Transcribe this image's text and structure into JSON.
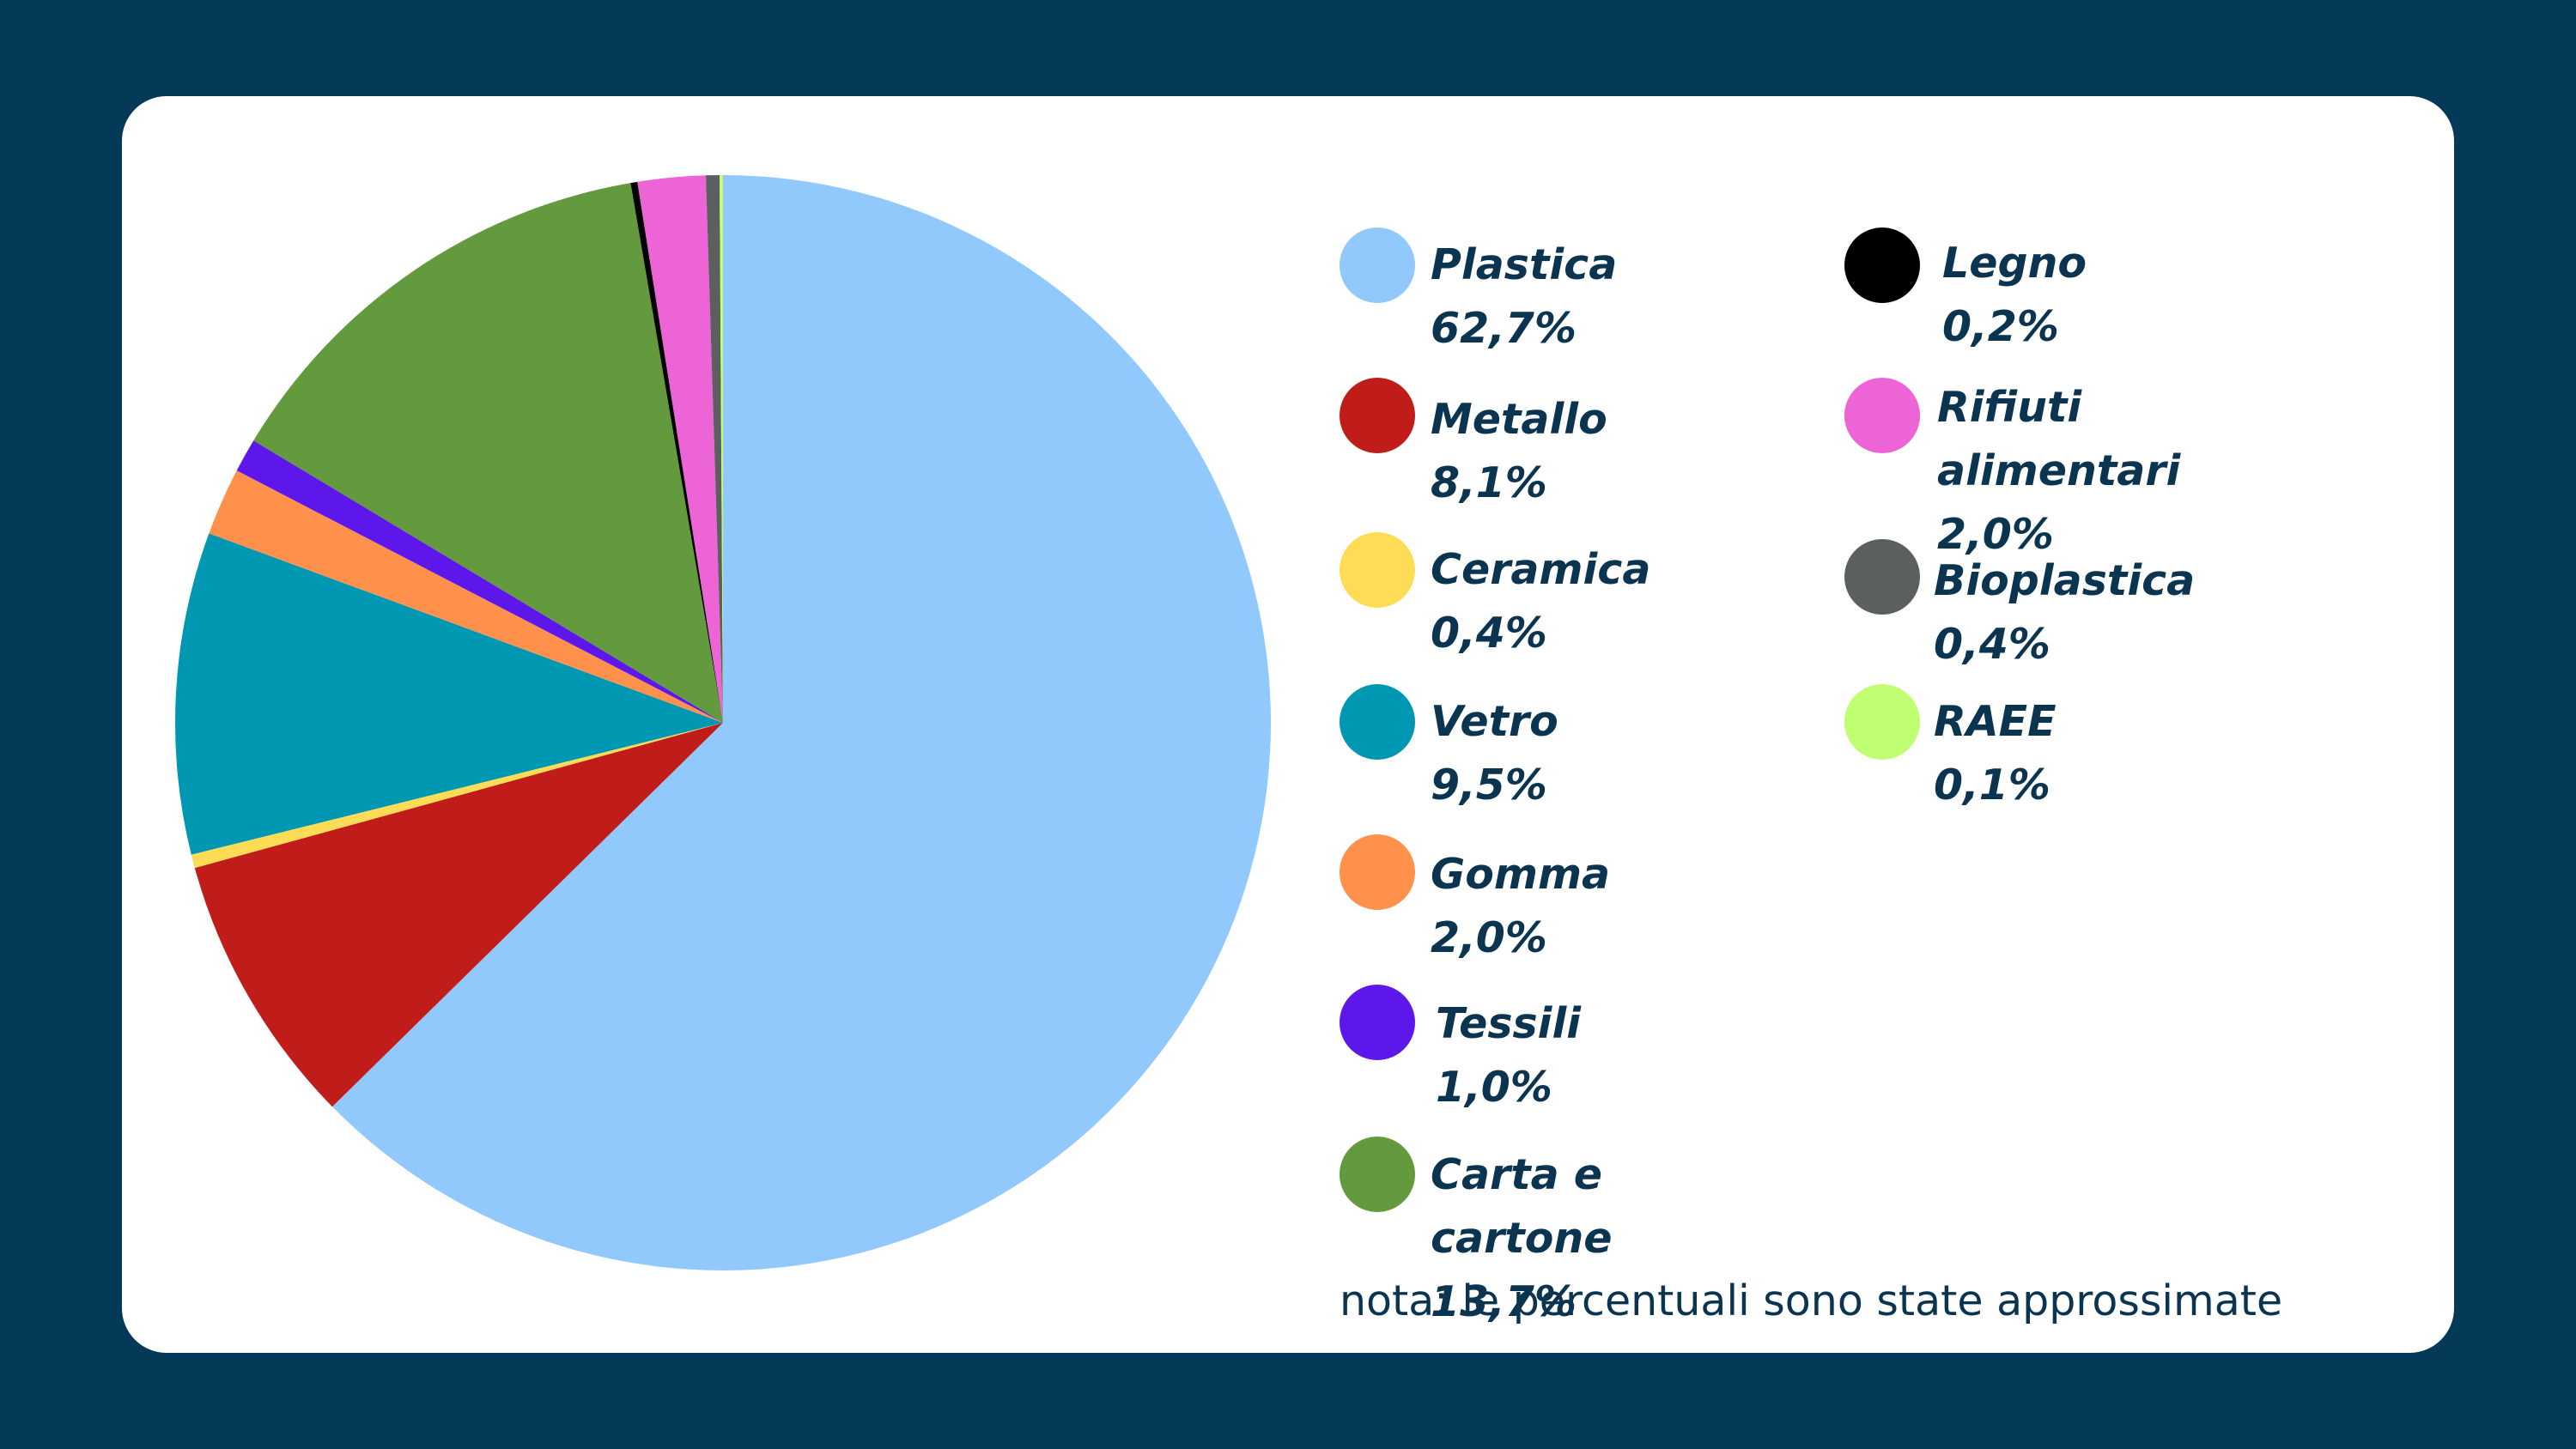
{
  "chart_data": {
    "type": "pie",
    "slices": [
      {
        "label": "Plastica 62,7%",
        "value": 62.7,
        "color": "#92c9fd"
      },
      {
        "label": "Metallo 8,1%",
        "value": 8.1,
        "color": "#c01d1a"
      },
      {
        "label": "Ceramica 0,4%",
        "value": 0.4,
        "color": "#fedc55"
      },
      {
        "label": "Vetro 9,5%",
        "value": 9.5,
        "color": "#0097b2"
      },
      {
        "label": "Gomma 2,0%",
        "value": 2.0,
        "color": "#ff914d"
      },
      {
        "label": "Tessili 1,0%",
        "value": 1.0,
        "color": "#5e17eb"
      },
      {
        "label": "Carta e cartone 13,7%",
        "value": 13.7,
        "color": "#629a3d"
      },
      {
        "label": "Legno 0,2%",
        "value": 0.2,
        "color": "#000000"
      },
      {
        "label": "Rifiuti alimentari\n 2,0%",
        "value": 2.0,
        "color": "#ec64d6"
      },
      {
        "label": "Bioplastica 0,4%",
        "value": 0.4,
        "color": "#5b5f5f"
      },
      {
        "label": "RAEE 0,1%",
        "value": 0.1,
        "color": "#c1ff72"
      }
    ],
    "legend_placement": "right",
    "note": "nota: le percentuali sono state approssimate"
  }
}
